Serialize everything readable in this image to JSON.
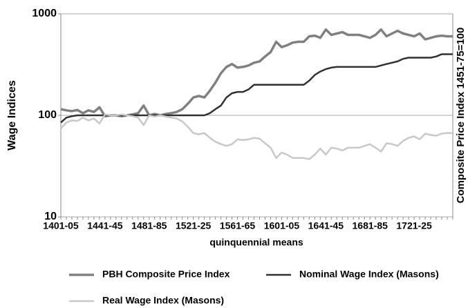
{
  "chart_data": {
    "type": "line",
    "y_label": "Wage Indices",
    "y2_label": "Composite Price Index 1451-75=100",
    "x_label": "quinquennial means",
    "categories": [
      "1401-05",
      null,
      null,
      null,
      null,
      null,
      null,
      null,
      "1441-45",
      null,
      null,
      null,
      null,
      null,
      null,
      null,
      "1481-85",
      null,
      null,
      null,
      null,
      null,
      null,
      null,
      "1521-25",
      null,
      null,
      null,
      null,
      null,
      null,
      null,
      "1561-65",
      null,
      null,
      null,
      null,
      null,
      null,
      null,
      "1601-05",
      null,
      null,
      null,
      null,
      null,
      null,
      null,
      "1641-45",
      null,
      null,
      null,
      null,
      null,
      null,
      null,
      "1681-85",
      null,
      null,
      null,
      null,
      null,
      null,
      null,
      "1721-25",
      null,
      null,
      null,
      null,
      null,
      null,
      null
    ],
    "series": [
      {
        "name": "PBH Composite Price Index",
        "color": "#808080",
        "values": [
          115,
          112,
          110,
          113,
          105,
          112,
          108,
          120,
          98,
          100,
          100,
          98,
          100,
          102,
          105,
          125,
          100,
          103,
          100,
          103,
          105,
          108,
          115,
          130,
          150,
          155,
          150,
          175,
          210,
          260,
          300,
          320,
          295,
          300,
          310,
          330,
          340,
          380,
          420,
          530,
          470,
          490,
          520,
          530,
          530,
          600,
          610,
          580,
          700,
          620,
          640,
          660,
          620,
          620,
          620,
          600,
          580,
          620,
          700,
          600,
          640,
          680,
          640,
          620,
          600,
          640,
          560,
          580,
          600,
          610,
          600,
          600
        ]
      },
      {
        "name": "Nominal Wage Index (Masons)",
        "color": "#303030",
        "values": [
          85,
          95,
          98,
          100,
          100,
          100,
          100,
          100,
          100,
          100,
          100,
          100,
          100,
          100,
          100,
          100,
          100,
          100,
          100,
          100,
          100,
          100,
          100,
          100,
          100,
          100,
          100,
          105,
          115,
          125,
          150,
          165,
          170,
          170,
          180,
          200,
          200,
          200,
          200,
          200,
          200,
          200,
          200,
          200,
          200,
          220,
          250,
          270,
          285,
          295,
          300,
          300,
          300,
          300,
          300,
          300,
          300,
          300,
          310,
          320,
          330,
          340,
          360,
          370,
          370,
          370,
          370,
          370,
          380,
          400,
          400,
          400
        ]
      },
      {
        "name": "Real Wage Index (Masons)",
        "color": "#c8c8c8",
        "values": [
          74,
          85,
          89,
          88,
          95,
          89,
          93,
          83,
          102,
          100,
          100,
          102,
          100,
          98,
          95,
          80,
          100,
          97,
          100,
          97,
          95,
          93,
          87,
          77,
          67,
          65,
          67,
          60,
          55,
          52,
          50,
          52,
          58,
          57,
          58,
          60,
          59,
          53,
          48,
          38,
          43,
          41,
          38,
          38,
          38,
          37,
          41,
          47,
          41,
          48,
          47,
          45,
          48,
          48,
          48,
          50,
          52,
          48,
          44,
          53,
          52,
          50,
          56,
          60,
          62,
          58,
          66,
          64,
          63,
          66,
          67,
          67
        ]
      }
    ],
    "ylim": [
      10,
      1000
    ],
    "yticks": [
      10,
      100,
      1000
    ],
    "log_y": true,
    "grid": true,
    "legend": "bottom"
  }
}
